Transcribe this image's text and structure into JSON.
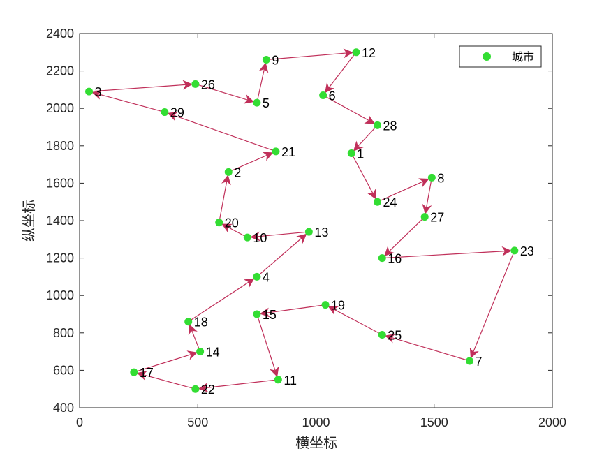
{
  "chart_data": {
    "type": "scatter",
    "title": "",
    "xlabel": "横坐标",
    "ylabel": "纵坐标",
    "xlim": [
      0,
      2000
    ],
    "ylim": [
      400,
      2400
    ],
    "xticks": [
      0,
      500,
      1000,
      1500,
      2000
    ],
    "yticks": [
      400,
      600,
      800,
      1000,
      1200,
      1400,
      1600,
      1800,
      2000,
      2200,
      2400
    ],
    "grid": false,
    "legend": {
      "position": "top-right",
      "entries": [
        "城市"
      ]
    },
    "colors": {
      "points": "#33dd33",
      "route": "#c0305a",
      "axis": "#262626"
    },
    "series": [
      {
        "name": "城市",
        "points": [
          {
            "label": "1",
            "x": 1150,
            "y": 1760
          },
          {
            "label": "2",
            "x": 630,
            "y": 1660
          },
          {
            "label": "3",
            "x": 40,
            "y": 2090
          },
          {
            "label": "4",
            "x": 750,
            "y": 1100
          },
          {
            "label": "5",
            "x": 750,
            "y": 2030
          },
          {
            "label": "6",
            "x": 1030,
            "y": 2070
          },
          {
            "label": "7",
            "x": 1650,
            "y": 650
          },
          {
            "label": "8",
            "x": 1490,
            "y": 1630
          },
          {
            "label": "9",
            "x": 790,
            "y": 2260
          },
          {
            "label": "10",
            "x": 710,
            "y": 1310
          },
          {
            "label": "11",
            "x": 840,
            "y": 550
          },
          {
            "label": "12",
            "x": 1170,
            "y": 2300
          },
          {
            "label": "13",
            "x": 970,
            "y": 1340
          },
          {
            "label": "14",
            "x": 510,
            "y": 700
          },
          {
            "label": "15",
            "x": 750,
            "y": 900
          },
          {
            "label": "16",
            "x": 1280,
            "y": 1200
          },
          {
            "label": "17",
            "x": 230,
            "y": 590
          },
          {
            "label": "18",
            "x": 460,
            "y": 860
          },
          {
            "label": "19",
            "x": 1040,
            "y": 950
          },
          {
            "label": "20",
            "x": 590,
            "y": 1390
          },
          {
            "label": "21",
            "x": 830,
            "y": 1770
          },
          {
            "label": "22",
            "x": 490,
            "y": 500
          },
          {
            "label": "23",
            "x": 1840,
            "y": 1240
          },
          {
            "label": "24",
            "x": 1260,
            "y": 1500
          },
          {
            "label": "25",
            "x": 1280,
            "y": 790
          },
          {
            "label": "26",
            "x": 490,
            "y": 2130
          },
          {
            "label": "27",
            "x": 1460,
            "y": 1420
          },
          {
            "label": "28",
            "x": 1260,
            "y": 1910
          },
          {
            "label": "29",
            "x": 360,
            "y": 1980
          }
        ]
      }
    ],
    "route": [
      "1",
      "24",
      "8",
      "27",
      "16",
      "23",
      "7",
      "25",
      "19",
      "15",
      "11",
      "22",
      "17",
      "14",
      "18",
      "4",
      "13",
      "10",
      "20",
      "2",
      "21",
      "29",
      "3",
      "26",
      "5",
      "9",
      "12",
      "6",
      "28",
      "1"
    ]
  }
}
